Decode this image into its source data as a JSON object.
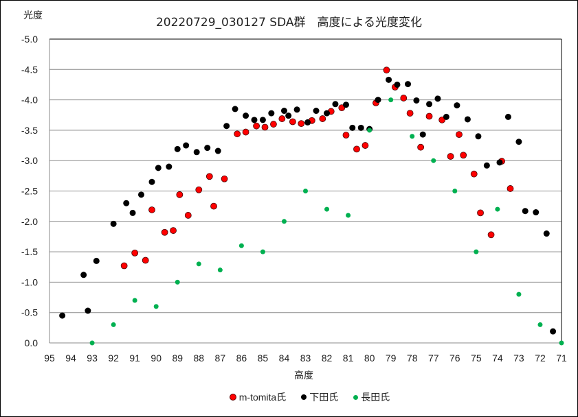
{
  "chart_data": {
    "type": "scatter",
    "title": "20220729_030127 SDA群　高度による光度変化",
    "xlabel": "高度",
    "ylabel": "光度",
    "xlim": [
      95,
      71
    ],
    "ylim": [
      0.0,
      -5.0
    ],
    "x_ticks": [
      "95",
      "94",
      "93",
      "92",
      "91",
      "90",
      "89",
      "88",
      "87",
      "86",
      "85",
      "84",
      "83",
      "82",
      "81",
      "80",
      "79",
      "78",
      "77",
      "76",
      "75",
      "74",
      "73",
      "72",
      "71"
    ],
    "y_ticks": [
      "-5.0",
      "-4.5",
      "-4.0",
      "-3.5",
      "-3.0",
      "-2.5",
      "-2.0",
      "-1.5",
      "-1.0",
      "-0.5",
      "0.0"
    ],
    "grid": "horizontal",
    "legend_position": "bottom",
    "series": [
      {
        "name": "m-tomita氏",
        "color": "#ff0000",
        "points": [
          [
            91.5,
            -1.27
          ],
          [
            91.0,
            -1.48
          ],
          [
            90.5,
            -1.36
          ],
          [
            90.2,
            -2.19
          ],
          [
            89.6,
            -1.82
          ],
          [
            89.2,
            -1.85
          ],
          [
            88.9,
            -2.44
          ],
          [
            88.5,
            -2.1
          ],
          [
            88.0,
            -2.52
          ],
          [
            87.5,
            -2.74
          ],
          [
            87.3,
            -2.25
          ],
          [
            86.8,
            -2.7
          ],
          [
            86.2,
            -3.44
          ],
          [
            85.8,
            -3.47
          ],
          [
            85.3,
            -3.57
          ],
          [
            84.9,
            -3.55
          ],
          [
            84.5,
            -3.6
          ],
          [
            84.1,
            -3.69
          ],
          [
            83.6,
            -3.64
          ],
          [
            83.2,
            -3.61
          ],
          [
            82.7,
            -3.66
          ],
          [
            82.2,
            -3.69
          ],
          [
            81.8,
            -3.81
          ],
          [
            81.3,
            -3.87
          ],
          [
            81.1,
            -3.42
          ],
          [
            80.6,
            -3.19
          ],
          [
            80.2,
            -3.25
          ],
          [
            79.7,
            -3.95
          ],
          [
            79.2,
            -4.49
          ],
          [
            78.8,
            -4.21
          ],
          [
            78.4,
            -4.03
          ],
          [
            78.1,
            -3.78
          ],
          [
            77.6,
            -3.22
          ],
          [
            77.2,
            -3.73
          ],
          [
            76.6,
            -3.67
          ],
          [
            76.2,
            -3.07
          ],
          [
            75.8,
            -3.43
          ],
          [
            75.6,
            -3.09
          ],
          [
            75.1,
            -2.78
          ],
          [
            74.8,
            -2.14
          ],
          [
            74.3,
            -1.78
          ],
          [
            73.8,
            -2.99
          ],
          [
            73.4,
            -2.54
          ]
        ]
      },
      {
        "name": "下田氏",
        "color": "#000000",
        "points": [
          [
            94.4,
            -0.45
          ],
          [
            93.4,
            -1.12
          ],
          [
            93.2,
            -0.53
          ],
          [
            92.8,
            -1.35
          ],
          [
            92.0,
            -1.96
          ],
          [
            91.4,
            -2.3
          ],
          [
            91.1,
            -2.14
          ],
          [
            90.7,
            -2.44
          ],
          [
            90.2,
            -2.65
          ],
          [
            89.9,
            -2.88
          ],
          [
            89.4,
            -2.9
          ],
          [
            89.0,
            -3.19
          ],
          [
            88.6,
            -3.25
          ],
          [
            88.1,
            -3.14
          ],
          [
            87.6,
            -3.21
          ],
          [
            87.1,
            -3.16
          ],
          [
            86.7,
            -3.57
          ],
          [
            86.3,
            -3.85
          ],
          [
            85.8,
            -3.74
          ],
          [
            85.4,
            -3.67
          ],
          [
            85.0,
            -3.67
          ],
          [
            84.6,
            -3.78
          ],
          [
            84.0,
            -3.82
          ],
          [
            83.8,
            -3.74
          ],
          [
            83.4,
            -3.84
          ],
          [
            82.9,
            -3.63
          ],
          [
            82.5,
            -3.82
          ],
          [
            82.0,
            -3.78
          ],
          [
            81.6,
            -3.93
          ],
          [
            81.1,
            -3.92
          ],
          [
            80.8,
            -3.54
          ],
          [
            80.4,
            -3.54
          ],
          [
            80.0,
            -3.52
          ],
          [
            79.6,
            -4.0
          ],
          [
            79.1,
            -4.33
          ],
          [
            78.7,
            -4.25
          ],
          [
            78.2,
            -4.26
          ],
          [
            77.8,
            -3.99
          ],
          [
            77.5,
            -3.43
          ],
          [
            77.2,
            -3.93
          ],
          [
            76.8,
            -4.02
          ],
          [
            76.4,
            -3.72
          ],
          [
            75.9,
            -3.91
          ],
          [
            75.4,
            -3.68
          ],
          [
            74.9,
            -3.4
          ],
          [
            74.5,
            -2.92
          ],
          [
            73.9,
            -2.97
          ],
          [
            73.5,
            -3.72
          ],
          [
            73.0,
            -3.31
          ],
          [
            72.7,
            -2.17
          ],
          [
            72.2,
            -2.15
          ],
          [
            71.7,
            -1.8
          ],
          [
            71.4,
            -0.19
          ]
        ]
      },
      {
        "name": "長田氏",
        "color": "#00b050",
        "points": [
          [
            93.0,
            0.0
          ],
          [
            92.0,
            -0.3
          ],
          [
            91.0,
            -0.7
          ],
          [
            90.0,
            -0.6
          ],
          [
            89.0,
            -1.0
          ],
          [
            88.0,
            -1.3
          ],
          [
            87.0,
            -1.2
          ],
          [
            86.0,
            -1.6
          ],
          [
            85.0,
            -1.5
          ],
          [
            84.0,
            -2.0
          ],
          [
            83.0,
            -2.5
          ],
          [
            82.0,
            -2.2
          ],
          [
            81.0,
            -2.1
          ],
          [
            80.0,
            -3.5
          ],
          [
            79.0,
            -4.0
          ],
          [
            78.0,
            -3.4
          ],
          [
            77.0,
            -3.0
          ],
          [
            76.0,
            -2.5
          ],
          [
            75.0,
            -1.5
          ],
          [
            74.0,
            -2.2
          ],
          [
            73.0,
            -0.8
          ],
          [
            72.0,
            -0.3
          ],
          [
            71.0,
            0.0
          ]
        ]
      }
    ]
  }
}
